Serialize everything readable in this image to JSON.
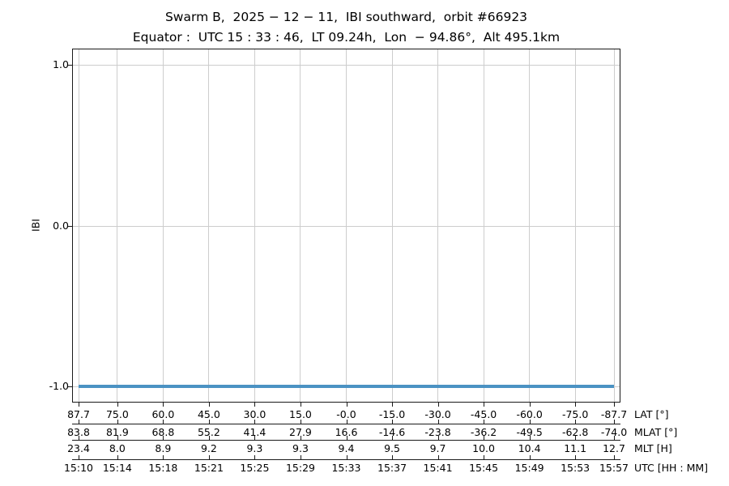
{
  "figure": {
    "title": "Swarm B,  2025 − 12 − 11,  IBI southward,  orbit #66923",
    "subtitle": "Equator :  UTC 15 : 33 : 46,  LT 09.24h,  Lon  − 94.86°,  Alt 495.1km",
    "background_color": "#ffffff"
  },
  "chart_data": {
    "type": "line",
    "title": "Swarm B,  2025 − 12 − 11,  IBI southward,  orbit #66923",
    "subtitle": "Equator :  UTC 15 : 33 : 46,  LT 09.24h,  Lon  − 94.86°,  Alt 495.1km",
    "ylabel": "IBI",
    "ylim": [
      -1.1,
      1.1
    ],
    "grid": true,
    "grid_color": "#cdcdcd",
    "spine_color": "#1a1a1a",
    "yticks": [
      {
        "value": 1.0,
        "label": "1.0"
      },
      {
        "value": 0.0,
        "label": "0.0"
      },
      {
        "value": -1.0,
        "label": "-1.0"
      }
    ],
    "series": [
      {
        "name": "IBI",
        "color": "#4b92c3",
        "line_width": 4,
        "y_constant": -1.0,
        "lat_start": 87.7,
        "lat_end": -87.7,
        "utc_start": "15:10",
        "utc_end": "15:57"
      }
    ],
    "x_axis_rows": [
      {
        "label": "LAT [°]",
        "values": [
          "87.7",
          "75.0",
          "60.0",
          "45.0",
          "30.0",
          "15.0",
          "-0.0",
          "-15.0",
          "-30.0",
          "-45.0",
          "-60.0",
          "-75.0",
          "-87.7"
        ]
      },
      {
        "label": "MLAT [°]",
        "values": [
          "83.8",
          "81.9",
          "68.8",
          "55.2",
          "41.4",
          "27.9",
          "16.6",
          "-14.6",
          "-23.8",
          "-36.2",
          "-49.5",
          "-62.8",
          "-74.0"
        ]
      },
      {
        "label": "MLT [H]",
        "values": [
          "23.4",
          "8.0",
          "8.9",
          "9.2",
          "9.3",
          "9.3",
          "9.4",
          "9.5",
          "9.7",
          "10.0",
          "10.4",
          "11.1",
          "12.7"
        ]
      },
      {
        "label": "UTC [HH : MM]",
        "values": [
          "15:10",
          "15:14",
          "15:18",
          "15:21",
          "15:25",
          "15:29",
          "15:33",
          "15:37",
          "15:41",
          "15:45",
          "15:49",
          "15:53",
          "15:57"
        ]
      }
    ]
  }
}
